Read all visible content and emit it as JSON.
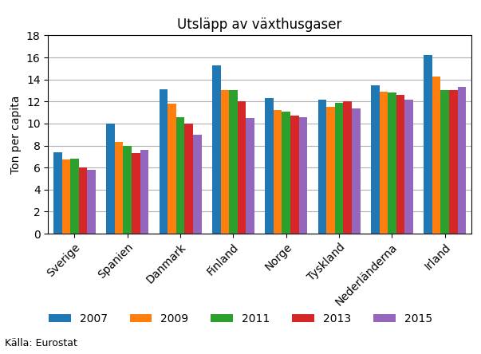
{
  "chart_data": {
    "type": "bar",
    "title": "Utsläpp av växthusgaser",
    "ylabel": "Ton per capita",
    "annotations": [
      "Källa: Eurostat"
    ],
    "categories": [
      "Sverige",
      "Spanien",
      "Danmark",
      "Finland",
      "Norge",
      "Tyskland",
      "Nederländerna",
      "Irland"
    ],
    "series": [
      {
        "name": "2007",
        "values": [
          7.4,
          10.0,
          13.1,
          15.3,
          12.3,
          12.2,
          13.5,
          16.2
        ]
      },
      {
        "name": "2009",
        "values": [
          6.7,
          8.3,
          11.8,
          13.0,
          11.2,
          11.5,
          12.9,
          14.3
        ]
      },
      {
        "name": "2011",
        "values": [
          6.8,
          8.0,
          10.6,
          13.0,
          11.1,
          11.9,
          12.8,
          13.0
        ]
      },
      {
        "name": "2013",
        "values": [
          6.0,
          7.3,
          10.0,
          12.0,
          10.7,
          12.0,
          12.6,
          13.0
        ]
      },
      {
        "name": "2015",
        "values": [
          5.8,
          7.6,
          9.0,
          10.5,
          10.6,
          11.4,
          12.2,
          13.3
        ]
      }
    ],
    "ylim": [
      0,
      18
    ],
    "yticks": [
      0,
      2,
      4,
      6,
      8,
      10,
      12,
      14,
      16,
      18
    ],
    "grid": true,
    "legend": "lower center"
  }
}
